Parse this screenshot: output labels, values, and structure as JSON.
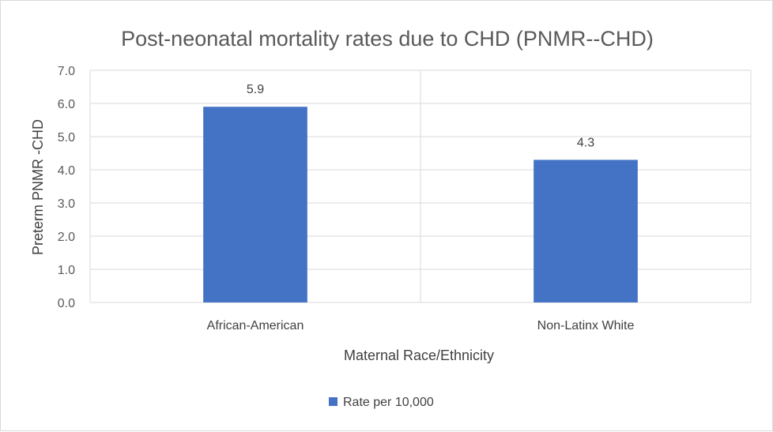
{
  "chart_data": {
    "type": "bar",
    "title": "Post-neonatal mortality rates due to CHD (PNMR--CHD)",
    "xlabel": "Maternal Race/Ethnicity",
    "ylabel": "Preterm PNMR -CHD",
    "categories": [
      "African-American",
      "Non-Latinx White"
    ],
    "series": [
      {
        "name": "Rate per 10,000",
        "values": [
          5.9,
          4.3
        ],
        "data_labels": [
          "5.9",
          "4.3"
        ]
      }
    ],
    "ylim": [
      0,
      7
    ],
    "y_ticks": [
      "0.0",
      "1.0",
      "2.0",
      "3.0",
      "4.0",
      "5.0",
      "6.0",
      "7.0"
    ],
    "grid": true,
    "legend_position": "bottom",
    "colors": {
      "bar": "#4472c4"
    }
  }
}
